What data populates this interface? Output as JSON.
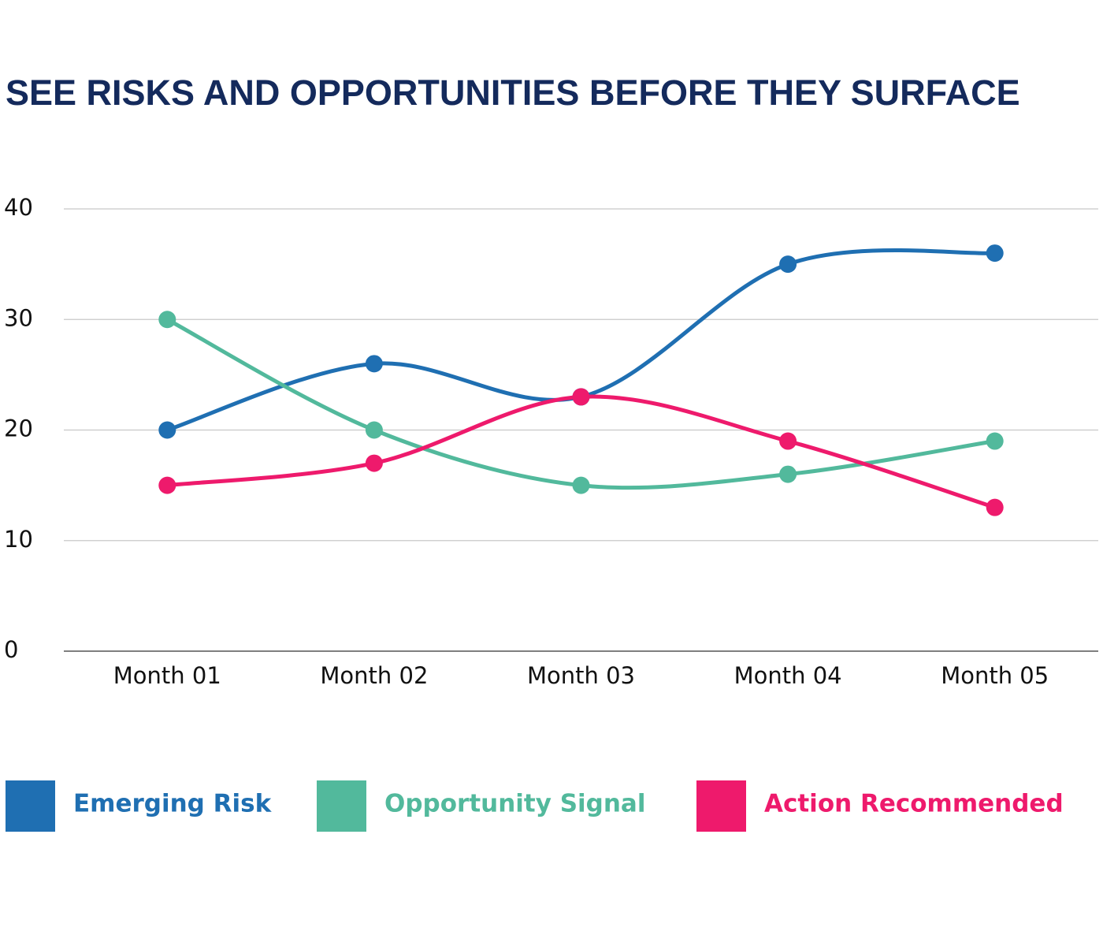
{
  "chart_data": {
    "type": "line",
    "title": "SEE RISKS AND OPPORTUNITIES BEFORE THEY SURFACE",
    "categories": [
      "Month 01",
      "Month 02",
      "Month 03",
      "Month 04",
      "Month 05"
    ],
    "series": [
      {
        "name": "Emerging Risk",
        "color": "#1f6fb2",
        "values": [
          20,
          26,
          23,
          35,
          36
        ]
      },
      {
        "name": "Opportunity Signal",
        "color": "#52b99c",
        "values": [
          30,
          20,
          15,
          16,
          19
        ]
      },
      {
        "name": "Action Recommended",
        "color": "#ee1a6c",
        "values": [
          15,
          17,
          23,
          19,
          13
        ]
      }
    ],
    "ylim": [
      0,
      40
    ],
    "yticks": [
      0,
      10,
      20,
      30,
      40
    ],
    "grid": true,
    "smooth": true,
    "legend": "bottom"
  }
}
